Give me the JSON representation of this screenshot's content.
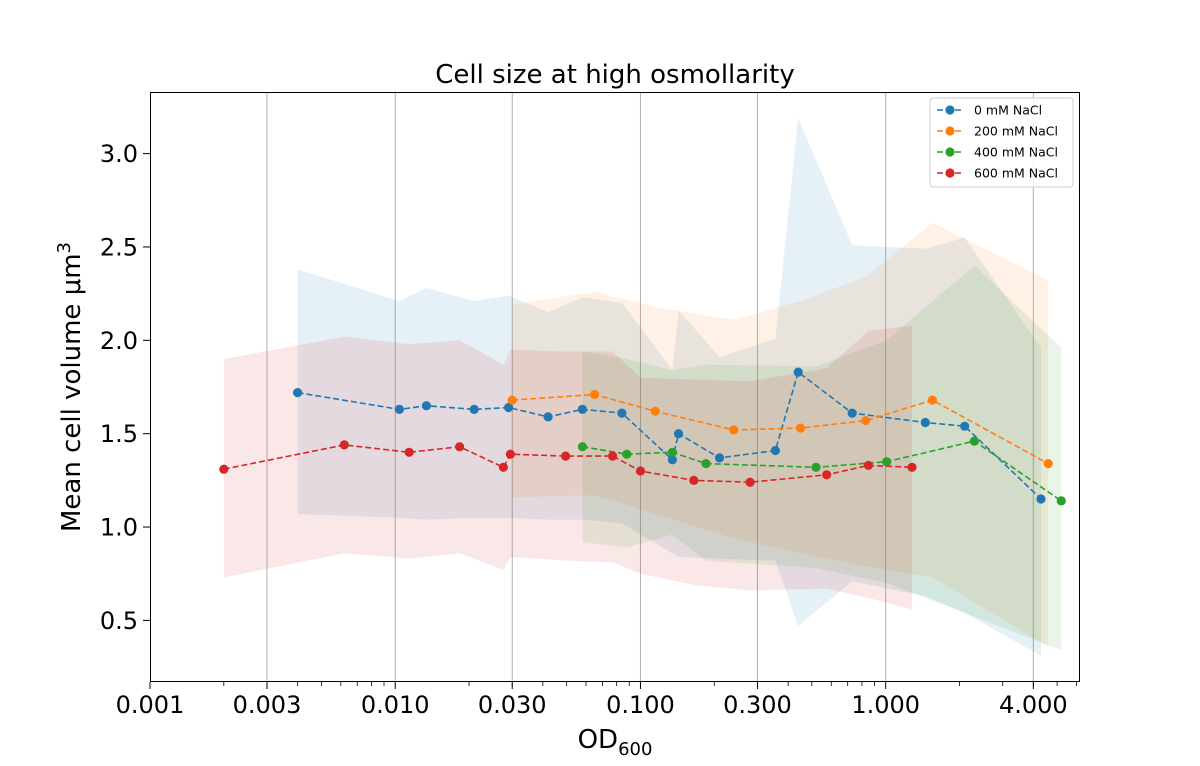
{
  "chart_data": {
    "type": "line",
    "title": "Cell size at high osmollarity",
    "xlabel": "OD",
    "xlabel_sub": "600",
    "ylabel": "Mean cell volume μm",
    "ylabel_sup": "3",
    "xscale": "log",
    "xlim": [
      0.001,
      6.2
    ],
    "ylim": [
      0.17,
      3.33
    ],
    "xticks": [
      0.001,
      0.003,
      0.01,
      0.03,
      0.1,
      0.3,
      1.0,
      4.0
    ],
    "xtick_labels": [
      "0.001",
      "0.003",
      "0.010",
      "0.030",
      "0.100",
      "0.300",
      "1.000",
      "4.000"
    ],
    "yticks": [
      0.5,
      1.0,
      1.5,
      2.0,
      2.5,
      3.0
    ],
    "ytick_labels": [
      "0.5",
      "1.0",
      "1.5",
      "2.0",
      "2.5",
      "3.0"
    ],
    "grid": "x-major",
    "legend_position": "top-right",
    "series": [
      {
        "name": "0 mM NaCl",
        "color": "#1f77b4",
        "x": [
          0.004,
          0.0104,
          0.0134,
          0.021,
          0.029,
          0.042,
          0.058,
          0.084,
          0.135,
          0.143,
          0.21,
          0.355,
          0.44,
          0.73,
          1.45,
          2.1,
          4.3
        ],
        "y": [
          1.72,
          1.63,
          1.65,
          1.63,
          1.64,
          1.59,
          1.63,
          1.61,
          1.36,
          1.5,
          1.37,
          1.41,
          1.83,
          1.61,
          1.56,
          1.54,
          1.15
        ],
        "upper": [
          2.38,
          2.21,
          2.28,
          2.21,
          2.24,
          2.15,
          2.23,
          2.2,
          1.84,
          2.16,
          1.91,
          2.01,
          3.19,
          2.51,
          2.49,
          2.55,
          1.96
        ],
        "lower": [
          1.07,
          1.05,
          1.04,
          1.05,
          1.05,
          1.04,
          1.04,
          1.02,
          0.86,
          0.84,
          0.83,
          0.82,
          0.47,
          0.71,
          0.63,
          0.54,
          0.31
        ]
      },
      {
        "name": "200 mM NaCl",
        "color": "#ff7f0e",
        "x": [
          0.03,
          0.065,
          0.115,
          0.24,
          0.45,
          0.83,
          1.55,
          4.6
        ],
        "y": [
          1.68,
          1.71,
          1.62,
          1.52,
          1.53,
          1.57,
          1.68,
          1.34
        ],
        "upper": [
          2.19,
          2.26,
          2.18,
          2.11,
          2.21,
          2.34,
          2.63,
          2.32
        ],
        "lower": [
          1.16,
          1.17,
          1.07,
          0.94,
          0.86,
          0.79,
          0.73,
          0.36
        ]
      },
      {
        "name": "400 mM NaCl",
        "color": "#2ca02c",
        "x": [
          0.058,
          0.088,
          0.135,
          0.185,
          0.52,
          1.01,
          2.3,
          5.2
        ],
        "y": [
          1.43,
          1.39,
          1.4,
          1.34,
          1.32,
          1.35,
          1.46,
          1.14
        ],
        "upper": [
          1.94,
          1.9,
          1.84,
          1.87,
          1.86,
          2.0,
          2.4,
          1.96
        ],
        "lower": [
          0.92,
          0.89,
          0.96,
          0.82,
          0.78,
          0.7,
          0.52,
          0.34
        ]
      },
      {
        "name": "600 mM NaCl",
        "color": "#d62728",
        "x": [
          0.002,
          0.0062,
          0.0114,
          0.0183,
          0.0276,
          0.0295,
          0.0495,
          0.077,
          0.1,
          0.165,
          0.28,
          0.575,
          0.85,
          1.28
        ],
        "y": [
          1.31,
          1.44,
          1.4,
          1.43,
          1.32,
          1.39,
          1.38,
          1.38,
          1.3,
          1.25,
          1.24,
          1.28,
          1.33,
          1.32
        ],
        "upper": [
          1.9,
          2.02,
          1.98,
          2.0,
          1.87,
          1.95,
          1.94,
          1.94,
          1.8,
          1.79,
          1.78,
          1.85,
          2.05,
          2.08
        ],
        "lower": [
          0.73,
          0.86,
          0.83,
          0.86,
          0.77,
          0.84,
          0.82,
          0.81,
          0.75,
          0.69,
          0.66,
          0.67,
          0.62,
          0.56
        ]
      }
    ]
  }
}
